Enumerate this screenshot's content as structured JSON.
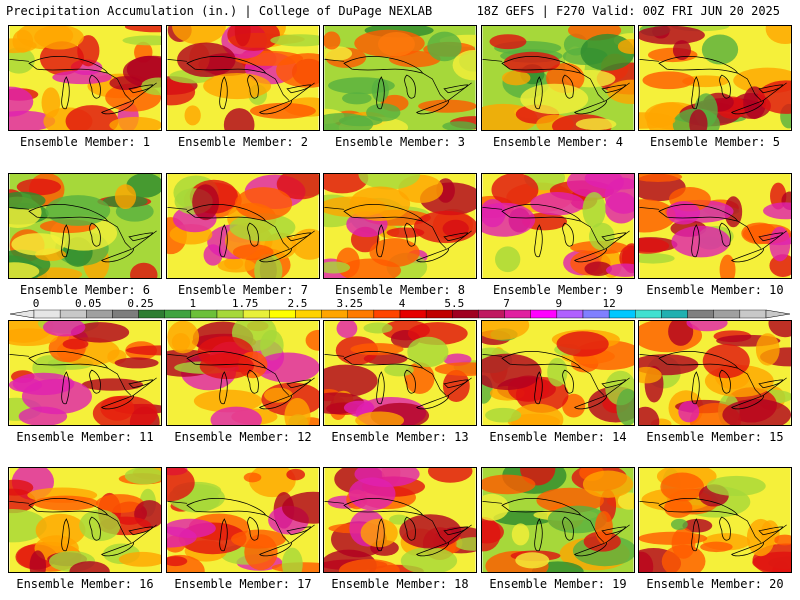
{
  "header": {
    "left_title": "Precipitation Accumulation (in.) | College of DuPage NEXLAB",
    "right_title": "18Z GEFS | F270 Valid: 00Z FRI JUN 20 2025"
  },
  "panels": [
    {
      "label": "Ensemble Member: 1",
      "scheme": "red"
    },
    {
      "label": "Ensemble Member: 2",
      "scheme": "red"
    },
    {
      "label": "Ensemble Member: 3",
      "scheme": "green"
    },
    {
      "label": "Ensemble Member: 4",
      "scheme": "green"
    },
    {
      "label": "Ensemble Member: 5",
      "scheme": "yellow"
    },
    {
      "label": "Ensemble Member: 6",
      "scheme": "green"
    },
    {
      "label": "Ensemble Member: 7",
      "scheme": "red"
    },
    {
      "label": "Ensemble Member: 8",
      "scheme": "red"
    },
    {
      "label": "Ensemble Member: 9",
      "scheme": "red"
    },
    {
      "label": "Ensemble Member: 10",
      "scheme": "red"
    },
    {
      "label": "Ensemble Member: 11",
      "scheme": "red"
    },
    {
      "label": "Ensemble Member: 12",
      "scheme": "red"
    },
    {
      "label": "Ensemble Member: 13",
      "scheme": "red"
    },
    {
      "label": "Ensemble Member: 14",
      "scheme": "yellow"
    },
    {
      "label": "Ensemble Member: 15",
      "scheme": "red"
    },
    {
      "label": "Ensemble Member: 16",
      "scheme": "red"
    },
    {
      "label": "Ensemble Member: 17",
      "scheme": "red"
    },
    {
      "label": "Ensemble Member: 18",
      "scheme": "red"
    },
    {
      "label": "Ensemble Member: 19",
      "scheme": "green"
    },
    {
      "label": "Ensemble Member: 20",
      "scheme": "yellow"
    }
  ],
  "colorbar": {
    "labels": [
      "0",
      "0.05",
      "0.25",
      "1",
      "1.75",
      "2.5",
      "3.25",
      "4",
      "5.5",
      "7",
      "9",
      "12"
    ],
    "colors": [
      "#e6e6e6",
      "#c8c8c8",
      "#a0a0a0",
      "#7d7d7d",
      "#2e7d32",
      "#3fa33f",
      "#6cc03a",
      "#a6d83a",
      "#e8f03a",
      "#ffff00",
      "#ffd200",
      "#ffa500",
      "#ff7a00",
      "#ff4500",
      "#e60000",
      "#c00000",
      "#a00020",
      "#c01860",
      "#e020a0",
      "#ff00ff",
      "#b060ff",
      "#8080ff",
      "#00c8ff",
      "#40e0d0",
      "#20b0b0",
      "#808080",
      "#a0a0a0",
      "#c8c8c8"
    ]
  },
  "palette": {
    "green_dark": "#2e8b2e",
    "green": "#58b040",
    "light_green": "#a6d83a",
    "yellow": "#f5f03a",
    "orange": "#ffa500",
    "red_orange": "#ff5a00",
    "red": "#e01010",
    "dark_red": "#b00020",
    "magenta": "#e020b0",
    "cyan": "#40f0f0"
  }
}
